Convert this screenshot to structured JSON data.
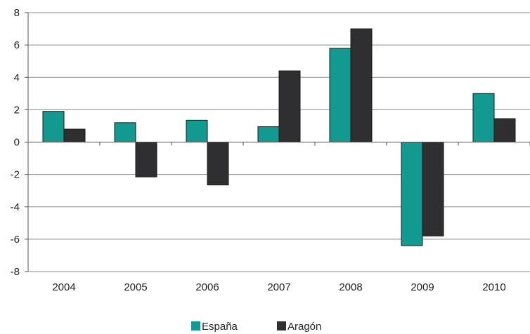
{
  "chart_data": {
    "type": "bar",
    "categories": [
      "2004",
      "2005",
      "2006",
      "2007",
      "2008",
      "2009",
      "2010"
    ],
    "series": [
      {
        "name": "España",
        "values": [
          1.9,
          1.2,
          1.35,
          0.95,
          5.8,
          -6.4,
          3.0
        ]
      },
      {
        "name": "Aragón",
        "values": [
          0.8,
          -2.15,
          -2.65,
          4.4,
          7.0,
          -5.8,
          1.45
        ]
      }
    ],
    "ylim": [
      -8,
      8
    ],
    "yticks": [
      "8",
      "6",
      "4",
      "2",
      "0",
      "-2",
      "-4",
      "-6",
      "-8"
    ],
    "ytick_values": [
      8,
      6,
      4,
      2,
      0,
      -2,
      -4,
      -6,
      -8
    ],
    "grid": true,
    "legend_position": "bottom-center",
    "colors": {
      "España": "#129a90",
      "Aragón": "#2f2f31"
    }
  }
}
